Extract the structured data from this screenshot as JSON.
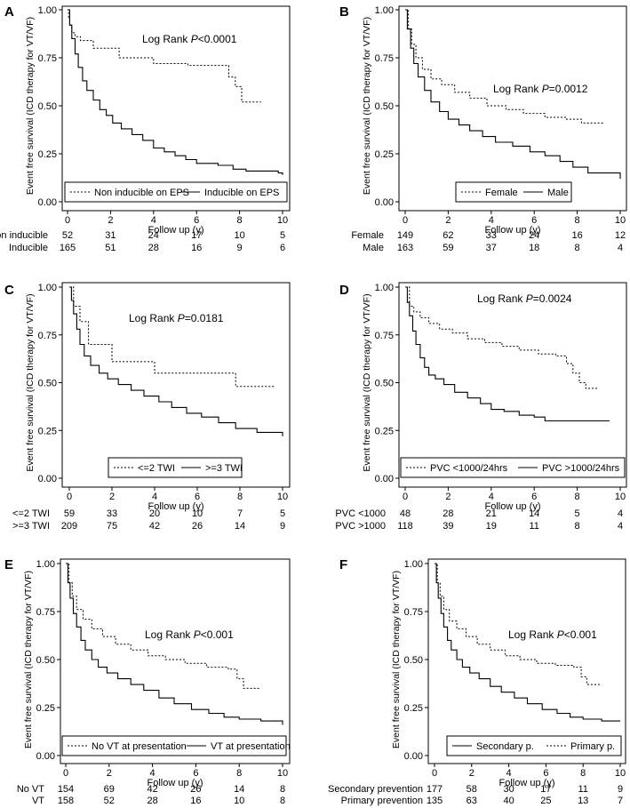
{
  "chart_data": [
    {
      "type": "line",
      "panel": "A",
      "ylabel": "Event free survival (ICD therapy for VT/VF)",
      "xlabel": "Follow up (y)",
      "xticks": [
        "0",
        "2",
        "4",
        "6",
        "8",
        "10"
      ],
      "yticks": [
        "0.00",
        "0.25",
        "0.50",
        "0.75",
        "1.00"
      ],
      "xlim": [
        0,
        10
      ],
      "ylim": [
        0,
        1
      ],
      "annotation_prefix": "Log Rank ",
      "annotation_p": "P",
      "annotation_value": "<0.0001",
      "series": [
        {
          "name": "Non inducible on EPS",
          "style": "dotted",
          "x": [
            0,
            0.05,
            0.1,
            0.2,
            0.35,
            0.6,
            1.2,
            2.4,
            4.0,
            5.6,
            7.5,
            7.8,
            8.1,
            9.0
          ],
          "y": [
            1.0,
            0.96,
            0.92,
            0.88,
            0.86,
            0.84,
            0.8,
            0.75,
            0.72,
            0.71,
            0.65,
            0.6,
            0.52,
            0.52
          ]
        },
        {
          "name": "Inducible on EPS",
          "style": "solid",
          "x": [
            0,
            0.1,
            0.2,
            0.35,
            0.5,
            0.7,
            0.9,
            1.2,
            1.5,
            1.8,
            2.1,
            2.5,
            3.0,
            3.5,
            4.0,
            4.5,
            5.0,
            5.5,
            6.0,
            7.0,
            7.7,
            8.3,
            9.0,
            9.8,
            10.0
          ],
          "y": [
            1.0,
            0.92,
            0.85,
            0.77,
            0.7,
            0.63,
            0.58,
            0.53,
            0.48,
            0.45,
            0.41,
            0.38,
            0.35,
            0.32,
            0.28,
            0.26,
            0.24,
            0.22,
            0.2,
            0.19,
            0.17,
            0.16,
            0.16,
            0.15,
            0.14
          ]
        }
      ],
      "legend": [
        "Non inducible on EPS",
        "Inducible on EPS"
      ],
      "risk_table": [
        {
          "label": "Non inducible",
          "values": [
            "52",
            "31",
            "24",
            "17",
            "10",
            "5"
          ]
        },
        {
          "label": "Inducible",
          "values": [
            "165",
            "51",
            "28",
            "16",
            "9",
            "6"
          ]
        }
      ]
    },
    {
      "type": "line",
      "panel": "B",
      "ylabel": "Event free survival (ICD therapy for VT/VF)",
      "xlabel": "Follow up (y)",
      "xticks": [
        "0",
        "2",
        "4",
        "6",
        "8",
        "10"
      ],
      "yticks": [
        "0.00",
        "0.25",
        "0.50",
        "0.75",
        "1.00"
      ],
      "xlim": [
        0,
        10
      ],
      "ylim": [
        0,
        1
      ],
      "annotation_prefix": "Log Rank ",
      "annotation_p": "P",
      "annotation_value": "=0.0012",
      "series": [
        {
          "name": "Female",
          "style": "dotted",
          "x": [
            0,
            0.15,
            0.3,
            0.5,
            0.8,
            1.2,
            1.7,
            2.3,
            3.0,
            3.8,
            4.7,
            5.5,
            6.5,
            7.5,
            8.2,
            9.2
          ],
          "y": [
            1.0,
            0.9,
            0.82,
            0.75,
            0.69,
            0.64,
            0.61,
            0.57,
            0.54,
            0.5,
            0.48,
            0.46,
            0.44,
            0.43,
            0.41,
            0.41
          ]
        },
        {
          "name": "Male",
          "style": "solid",
          "x": [
            0,
            0.1,
            0.25,
            0.4,
            0.6,
            0.9,
            1.2,
            1.6,
            2.0,
            2.5,
            3.0,
            3.6,
            4.2,
            5.0,
            5.8,
            6.5,
            7.2,
            7.8,
            8.5,
            9.5,
            10.0
          ],
          "y": [
            1.0,
            0.9,
            0.8,
            0.72,
            0.65,
            0.58,
            0.52,
            0.47,
            0.43,
            0.4,
            0.37,
            0.34,
            0.31,
            0.29,
            0.26,
            0.24,
            0.21,
            0.18,
            0.15,
            0.15,
            0.12
          ]
        }
      ],
      "legend": [
        "Female",
        "Male"
      ],
      "risk_table": [
        {
          "label": "Female",
          "values": [
            "149",
            "62",
            "33",
            "24",
            "16",
            "12"
          ]
        },
        {
          "label": "Male",
          "values": [
            "163",
            "59",
            "37",
            "18",
            "8",
            "4"
          ]
        }
      ]
    },
    {
      "type": "line",
      "panel": "C",
      "ylabel": "Event free survival (ICD therapy for VT/VF)",
      "xlabel": "Follow up (y)",
      "xticks": [
        "0",
        "2",
        "4",
        "6",
        "8",
        "10"
      ],
      "yticks": [
        "0.00",
        "0.25",
        "0.50",
        "0.75",
        "1.00"
      ],
      "xlim": [
        0,
        10
      ],
      "ylim": [
        0,
        1
      ],
      "annotation_prefix": "Log Rank ",
      "annotation_p": "P",
      "annotation_value": "=0.0181",
      "series": [
        {
          "name": "<=2 TWI",
          "style": "dotted",
          "x": [
            0,
            0.2,
            0.5,
            0.9,
            2.0,
            4.0,
            7.8,
            9.6
          ],
          "y": [
            1.0,
            0.9,
            0.82,
            0.7,
            0.61,
            0.55,
            0.48,
            0.48
          ]
        },
        {
          "name": ">=3 TWI",
          "style": "solid",
          "x": [
            0,
            0.1,
            0.2,
            0.35,
            0.5,
            0.7,
            1.0,
            1.4,
            1.8,
            2.3,
            2.9,
            3.5,
            4.2,
            4.8,
            5.5,
            6.2,
            7.0,
            7.8,
            8.8,
            9.8,
            10.0
          ],
          "y": [
            1.0,
            0.93,
            0.86,
            0.78,
            0.7,
            0.64,
            0.59,
            0.55,
            0.52,
            0.49,
            0.46,
            0.43,
            0.4,
            0.37,
            0.34,
            0.32,
            0.29,
            0.26,
            0.24,
            0.24,
            0.22
          ]
        }
      ],
      "legend": [
        "<=2 TWI",
        ">=3 TWI"
      ],
      "risk_table": [
        {
          "label": "<=2 TWI",
          "values": [
            "59",
            "33",
            "20",
            "10",
            "7",
            "5"
          ]
        },
        {
          "label": ">=3 TWI",
          "values": [
            "209",
            "75",
            "42",
            "26",
            "14",
            "9"
          ]
        }
      ]
    },
    {
      "type": "line",
      "panel": "D",
      "ylabel": "Event free survival (ICD therapy for VT/VF)",
      "xlabel": "Follow up (y)",
      "xticks": [
        "0",
        "2",
        "4",
        "6",
        "8",
        "10"
      ],
      "yticks": [
        "0.00",
        "0.25",
        "0.50",
        "0.75",
        "1.00"
      ],
      "xlim": [
        0,
        10
      ],
      "ylim": [
        0,
        1
      ],
      "annotation_prefix": "Log Rank ",
      "annotation_p": "P",
      "annotation_value": "=0.0024",
      "series": [
        {
          "name": "PVC <1000/24hrs",
          "style": "dotted",
          "x": [
            0,
            0.2,
            0.4,
            0.7,
            1.1,
            1.6,
            2.2,
            2.9,
            3.7,
            4.5,
            5.3,
            6.2,
            7.0,
            7.5,
            7.8,
            8.1,
            8.4,
            9.0
          ],
          "y": [
            1.0,
            0.9,
            0.87,
            0.84,
            0.81,
            0.78,
            0.76,
            0.73,
            0.71,
            0.69,
            0.67,
            0.65,
            0.64,
            0.6,
            0.55,
            0.5,
            0.47,
            0.47
          ]
        },
        {
          "name": "PVC >1000/24hrs",
          "style": "solid",
          "x": [
            0,
            0.1,
            0.2,
            0.35,
            0.5,
            0.7,
            0.9,
            1.1,
            1.4,
            1.8,
            2.3,
            2.9,
            3.5,
            4.0,
            4.6,
            5.3,
            6.0,
            6.5,
            7.3,
            8.5,
            9.5
          ],
          "y": [
            1.0,
            0.92,
            0.85,
            0.77,
            0.7,
            0.63,
            0.58,
            0.54,
            0.52,
            0.49,
            0.45,
            0.42,
            0.39,
            0.36,
            0.35,
            0.33,
            0.32,
            0.3,
            0.3,
            0.3,
            0.3
          ]
        }
      ],
      "legend": [
        "PVC <1000/24hrs",
        "PVC >1000/24hrs"
      ],
      "risk_table": [
        {
          "label": "PVC <1000",
          "values": [
            "48",
            "28",
            "21",
            "14",
            "5",
            "4"
          ]
        },
        {
          "label": "PVC >1000",
          "values": [
            "118",
            "39",
            "19",
            "11",
            "8",
            "4"
          ]
        }
      ]
    },
    {
      "type": "line",
      "panel": "E",
      "ylabel": "Event free survival (ICD therapy for VT/VF)",
      "xlabel": "Follow up (y)",
      "xticks": [
        "0",
        "2",
        "4",
        "6",
        "8",
        "10"
      ],
      "yticks": [
        "0.00",
        "0.25",
        "0.50",
        "0.75",
        "1.00"
      ],
      "xlim": [
        0,
        10
      ],
      "ylim": [
        0,
        1
      ],
      "annotation_prefix": "Log Rank ",
      "annotation_p": "P",
      "annotation_value": "<0.001",
      "series": [
        {
          "name": "No VT at presentation",
          "style": "dotted",
          "x": [
            0,
            0.15,
            0.3,
            0.5,
            0.8,
            1.2,
            1.7,
            2.3,
            3.0,
            3.8,
            4.6,
            5.5,
            6.5,
            7.5,
            7.9,
            8.2,
            9.0
          ],
          "y": [
            1.0,
            0.9,
            0.83,
            0.76,
            0.71,
            0.66,
            0.62,
            0.58,
            0.55,
            0.52,
            0.5,
            0.48,
            0.46,
            0.45,
            0.4,
            0.35,
            0.35
          ]
        },
        {
          "name": "VT at presentation",
          "style": "solid",
          "x": [
            0,
            0.1,
            0.2,
            0.35,
            0.5,
            0.7,
            0.9,
            1.2,
            1.5,
            1.9,
            2.4,
            3.0,
            3.6,
            4.3,
            5.0,
            5.8,
            6.6,
            7.3,
            8.0,
            9.0,
            9.9,
            10.0
          ],
          "y": [
            1.0,
            0.9,
            0.82,
            0.74,
            0.67,
            0.6,
            0.55,
            0.5,
            0.46,
            0.43,
            0.4,
            0.37,
            0.34,
            0.3,
            0.27,
            0.24,
            0.22,
            0.2,
            0.19,
            0.18,
            0.18,
            0.16
          ]
        }
      ],
      "legend": [
        "No VT at presentation",
        "VT at presentation"
      ],
      "risk_table": [
        {
          "label": "No VT",
          "values": [
            "154",
            "69",
            "42",
            "26",
            "14",
            "8"
          ]
        },
        {
          "label": "VT",
          "values": [
            "158",
            "52",
            "28",
            "16",
            "10",
            "8"
          ]
        }
      ]
    },
    {
      "type": "line",
      "panel": "F",
      "ylabel": "Event free survival (ICD therapy for VT/VF)",
      "xlabel": "Follow up (y)",
      "xticks": [
        "0",
        "2",
        "4",
        "6",
        "8",
        "10"
      ],
      "yticks": [
        "0.00",
        "0.25",
        "0.50",
        "0.75",
        "1.00"
      ],
      "xlim": [
        0,
        10
      ],
      "ylim": [
        0,
        1
      ],
      "annotation_prefix": "Log Rank ",
      "annotation_p": "P",
      "annotation_value": "<0.001",
      "series": [
        {
          "name": "Secondary p.",
          "style": "solid",
          "x": [
            0,
            0.1,
            0.2,
            0.35,
            0.5,
            0.7,
            0.9,
            1.2,
            1.5,
            1.9,
            2.4,
            3.0,
            3.6,
            4.3,
            5.0,
            5.8,
            6.6,
            7.3,
            8.0,
            9.0,
            10.0
          ],
          "y": [
            1.0,
            0.9,
            0.82,
            0.74,
            0.67,
            0.6,
            0.55,
            0.5,
            0.46,
            0.43,
            0.4,
            0.36,
            0.33,
            0.3,
            0.27,
            0.24,
            0.22,
            0.2,
            0.19,
            0.18,
            0.18
          ]
        },
        {
          "name": "Primary p.",
          "style": "dotted",
          "x": [
            0,
            0.15,
            0.3,
            0.5,
            0.8,
            1.2,
            1.7,
            2.3,
            3.0,
            3.8,
            4.6,
            5.5,
            6.5,
            7.5,
            7.9,
            8.2,
            9.0
          ],
          "y": [
            1.0,
            0.9,
            0.83,
            0.76,
            0.7,
            0.66,
            0.62,
            0.58,
            0.55,
            0.52,
            0.5,
            0.48,
            0.47,
            0.46,
            0.41,
            0.37,
            0.37
          ]
        }
      ],
      "legend": [
        "Secondary p.",
        "Primary p."
      ],
      "risk_table": [
        {
          "label": "Secondary prevention",
          "values": [
            "177",
            "58",
            "30",
            "17",
            "11",
            "9"
          ]
        },
        {
          "label": "Primary prevention",
          "values": [
            "135",
            "63",
            "40",
            "25",
            "13",
            "7"
          ]
        }
      ]
    }
  ]
}
